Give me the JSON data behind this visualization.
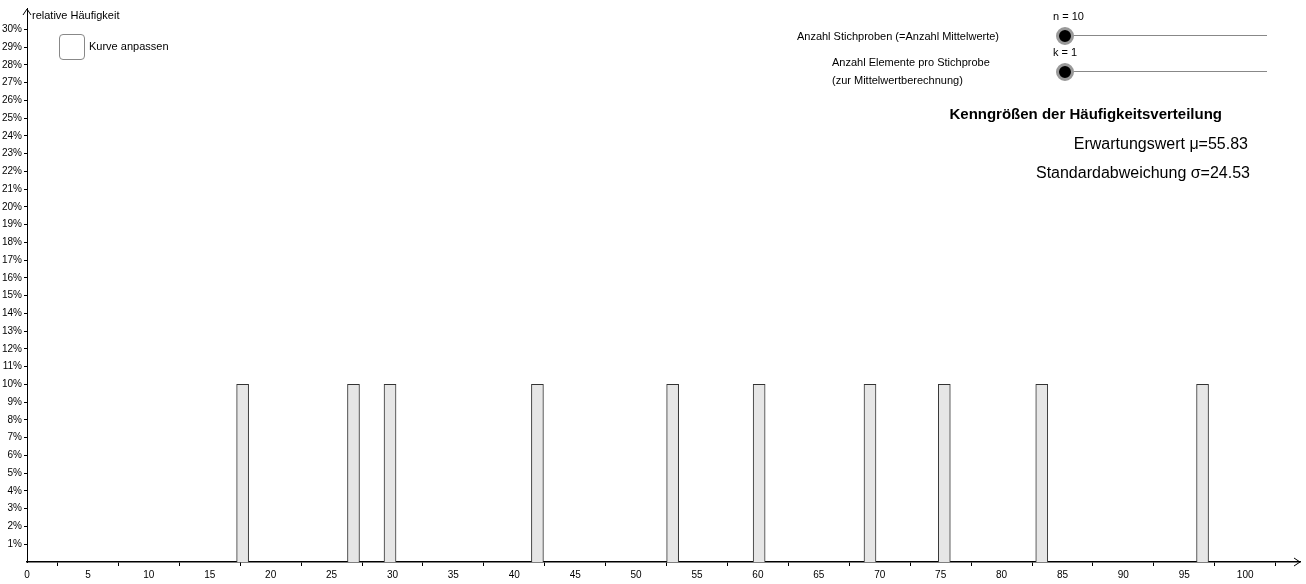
{
  "chart_data": {
    "type": "bar",
    "ylabel": "relative Häufigkeit",
    "x": [
      17.7,
      26.8,
      29.8,
      41.9,
      53.0,
      60.1,
      69.2,
      75.3,
      83.3,
      96.5
    ],
    "values": [
      10,
      10,
      10,
      10,
      10,
      10,
      10,
      10,
      10,
      10
    ],
    "color": "#e6e6e6",
    "xlim": [
      0,
      104.5
    ],
    "xticks": [
      0,
      5,
      10,
      15,
      20,
      25,
      30,
      35,
      40,
      45,
      50,
      55,
      60,
      65,
      70,
      75,
      80,
      85,
      90,
      95,
      100
    ],
    "ylim": [
      0,
      31.2
    ],
    "yticks": [
      {
        "value": 1,
        "label": "1%"
      },
      {
        "value": 2,
        "label": "2%"
      },
      {
        "value": 3,
        "label": "3%"
      },
      {
        "value": 4,
        "label": "4%"
      },
      {
        "value": 5,
        "label": "5%"
      },
      {
        "value": 6,
        "label": "6%"
      },
      {
        "value": 7,
        "label": "7%"
      },
      {
        "value": 8,
        "label": "8%"
      },
      {
        "value": 9,
        "label": "9%"
      },
      {
        "value": 10,
        "label": "10%"
      },
      {
        "value": 11,
        "label": "11%"
      },
      {
        "value": 12,
        "label": "12%"
      },
      {
        "value": 13,
        "label": "13%"
      },
      {
        "value": 14,
        "label": "14%"
      },
      {
        "value": 15,
        "label": "15%"
      },
      {
        "value": 16,
        "label": "16%"
      },
      {
        "value": 17,
        "label": "17%"
      },
      {
        "value": 18,
        "label": "18%"
      },
      {
        "value": 19,
        "label": "19%"
      },
      {
        "value": 20,
        "label": "20%"
      },
      {
        "value": 21,
        "label": "21%"
      },
      {
        "value": 22,
        "label": "22%"
      },
      {
        "value": 23,
        "label": "23%"
      },
      {
        "value": 24,
        "label": "24%"
      },
      {
        "value": 25,
        "label": "25%"
      },
      {
        "value": 26,
        "label": "26%"
      },
      {
        "value": 27,
        "label": "27%"
      },
      {
        "value": 28,
        "label": "28%"
      },
      {
        "value": 29,
        "label": "29%"
      },
      {
        "value": 30,
        "label": "30%"
      }
    ],
    "grid": false,
    "legend": false,
    "annotations": [
      "Kurve anpassen",
      "n = 10",
      "Anzahl Stichproben (=Anzahl Mittelwerte)",
      "k = 1",
      "Anzahl Elemente pro Stichprobe",
      "(zur Mittelwertberechnung)",
      "Kenngrößen der Häufigkeitsverteilung",
      "Erwartungswert μ=55.83",
      "Standardabweichung σ=24.53"
    ]
  }
}
